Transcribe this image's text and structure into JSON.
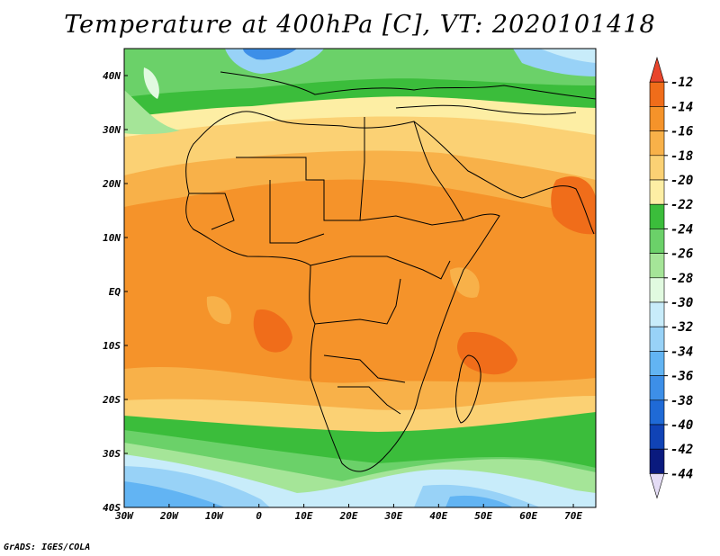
{
  "title": "Temperature at 400hPa [C], VT: 2020101418",
  "credit": "GrADS: IGES/COLA",
  "map": {
    "region": "Africa",
    "variable": "temperature",
    "level": "400hPa",
    "units": "C",
    "lon_ticks": [
      "30W",
      "20W",
      "10W",
      "0",
      "10E",
      "20E",
      "30E",
      "40E",
      "50E",
      "60E",
      "70E"
    ],
    "lat_ticks": [
      "40N",
      "30N",
      "20N",
      "10N",
      "EQ",
      "10S",
      "20S",
      "30S",
      "40S"
    ],
    "lon_range": [
      -30,
      75
    ],
    "lat_range": [
      -40,
      45
    ]
  },
  "colorbar": {
    "labels": [
      "-12",
      "-14",
      "-16",
      "-18",
      "-20",
      "-22",
      "-24",
      "-26",
      "-28",
      "-30",
      "-32",
      "-34",
      "-36",
      "-38",
      "-40",
      "-42",
      "-44"
    ],
    "colors": [
      "#e8452c",
      "#f06d1a",
      "#f5932a",
      "#f8b149",
      "#fbd174",
      "#fdeea4",
      "#3bbd3b",
      "#6bd169",
      "#a5e598",
      "#e1fae0",
      "#c8ecfa",
      "#98d2f7",
      "#62b4f3",
      "#3d8fe8",
      "#1f6ad6",
      "#1043b6",
      "#0a1a7e",
      "#e4dcf5"
    ]
  }
}
